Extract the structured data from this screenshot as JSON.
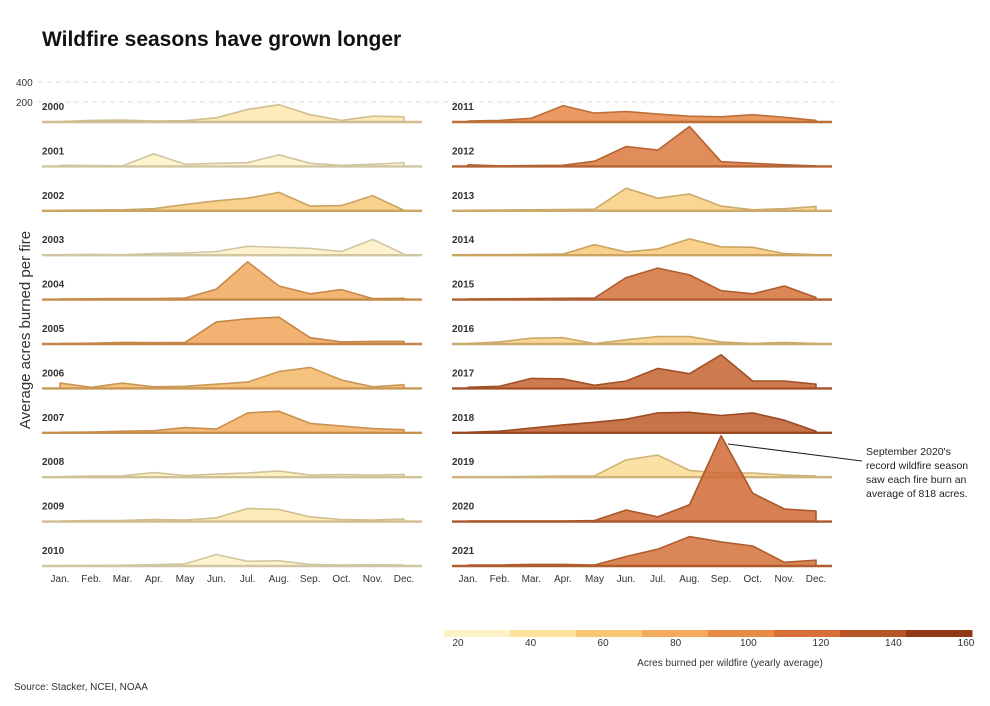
{
  "title": "Wildfire seasons have grown longer",
  "source": "Source: Stacker, NCEI, NOAA",
  "chart_data": {
    "type": "area",
    "subtype": "ridgeline small multiples",
    "title": "Wildfire seasons have grown longer",
    "ylabel": "Average acres burned per fire",
    "y_ticks": [
      "400",
      "200"
    ],
    "months": [
      "Jan.",
      "Feb.",
      "Mar.",
      "Apr.",
      "May",
      "Jun.",
      "Jul.",
      "Aug.",
      "Sep.",
      "Oct.",
      "Nov.",
      "Dec."
    ],
    "series": [
      {
        "name": "2000",
        "mean": 35,
        "values": [
          5,
          15,
          18,
          10,
          12,
          40,
          120,
          165,
          70,
          15,
          55,
          50
        ]
      },
      {
        "name": "2001",
        "mean": 25,
        "values": [
          10,
          8,
          5,
          120,
          20,
          30,
          35,
          110,
          30,
          10,
          20,
          35
        ]
      },
      {
        "name": "2002",
        "mean": 60,
        "values": [
          5,
          8,
          10,
          20,
          60,
          95,
          120,
          175,
          45,
          50,
          145,
          5
        ]
      },
      {
        "name": "2003",
        "mean": 25,
        "values": [
          5,
          8,
          5,
          15,
          20,
          35,
          85,
          75,
          65,
          35,
          150,
          10
        ]
      },
      {
        "name": "2004",
        "mean": 80,
        "values": [
          5,
          8,
          10,
          10,
          15,
          100,
          360,
          130,
          55,
          95,
          10,
          12
        ]
      },
      {
        "name": "2005",
        "mean": 82,
        "values": [
          5,
          8,
          15,
          12,
          15,
          210,
          240,
          255,
          60,
          20,
          25,
          25
        ]
      },
      {
        "name": "2006",
        "mean": 70,
        "values": [
          50,
          10,
          50,
          15,
          20,
          40,
          60,
          160,
          200,
          80,
          15,
          35
        ]
      },
      {
        "name": "2007",
        "mean": 75,
        "values": [
          5,
          8,
          15,
          20,
          50,
          35,
          190,
          205,
          90,
          65,
          40,
          30
        ]
      },
      {
        "name": "2008",
        "mean": 30,
        "values": [
          5,
          10,
          12,
          45,
          15,
          30,
          40,
          60,
          20,
          25,
          20,
          25
        ]
      },
      {
        "name": "2009",
        "mean": 35,
        "values": [
          5,
          10,
          10,
          20,
          15,
          35,
          125,
          115,
          45,
          20,
          15,
          25
        ]
      },
      {
        "name": "2010",
        "mean": 25,
        "values": [
          5,
          5,
          8,
          12,
          20,
          110,
          45,
          50,
          15,
          10,
          12,
          10
        ]
      },
      {
        "name": "2011",
        "mean": 100,
        "values": [
          10,
          15,
          35,
          155,
          85,
          100,
          75,
          55,
          50,
          70,
          45,
          15
        ]
      },
      {
        "name": "2012",
        "mean": 110,
        "values": [
          15,
          5,
          8,
          10,
          50,
          190,
          155,
          380,
          45,
          30,
          15,
          5
        ]
      },
      {
        "name": "2013",
        "mean": 55,
        "values": [
          5,
          8,
          10,
          12,
          15,
          215,
          120,
          160,
          45,
          10,
          20,
          40
        ]
      },
      {
        "name": "2014",
        "mean": 60,
        "values": [
          5,
          5,
          8,
          10,
          100,
          30,
          60,
          155,
          80,
          75,
          15,
          5
        ]
      },
      {
        "name": "2015",
        "mean": 115,
        "values": [
          5,
          8,
          10,
          12,
          15,
          210,
          300,
          235,
          85,
          55,
          130,
          20
        ]
      },
      {
        "name": "2016",
        "mean": 55,
        "values": [
          5,
          20,
          55,
          60,
          5,
          40,
          70,
          70,
          20,
          5,
          15,
          5
        ]
      },
      {
        "name": "2017",
        "mean": 125,
        "values": [
          10,
          20,
          95,
          90,
          30,
          70,
          190,
          140,
          320,
          70,
          70,
          40
        ]
      },
      {
        "name": "2018",
        "mean": 130,
        "values": [
          5,
          15,
          45,
          75,
          100,
          130,
          190,
          195,
          165,
          190,
          120,
          15
        ]
      },
      {
        "name": "2019",
        "mean": 45,
        "values": [
          5,
          5,
          8,
          10,
          12,
          165,
          210,
          65,
          40,
          40,
          20,
          10
        ]
      },
      {
        "name": "2020",
        "mean": 120,
        "values": [
          5,
          5,
          5,
          5,
          10,
          110,
          45,
          160,
          818,
          270,
          120,
          100
        ]
      },
      {
        "name": "2021",
        "mean": 115,
        "values": [
          10,
          10,
          15,
          15,
          10,
          90,
          160,
          280,
          230,
          190,
          35,
          55
        ]
      }
    ],
    "annotation": [
      "September 2020's",
      "record wildfire season",
      "saw each fire burn an",
      "average of 818 acres."
    ],
    "legend": {
      "title": "Acres burned per wildfire (yearly average)",
      "ticks": [
        "20",
        "40",
        "60",
        "80",
        "100",
        "120",
        "140",
        "160"
      ],
      "colors": [
        "#fdf2c5",
        "#fbe19c",
        "#f7c774",
        "#f2ab58",
        "#e98a45",
        "#d9703a",
        "#b85528",
        "#8f3a14"
      ]
    }
  }
}
